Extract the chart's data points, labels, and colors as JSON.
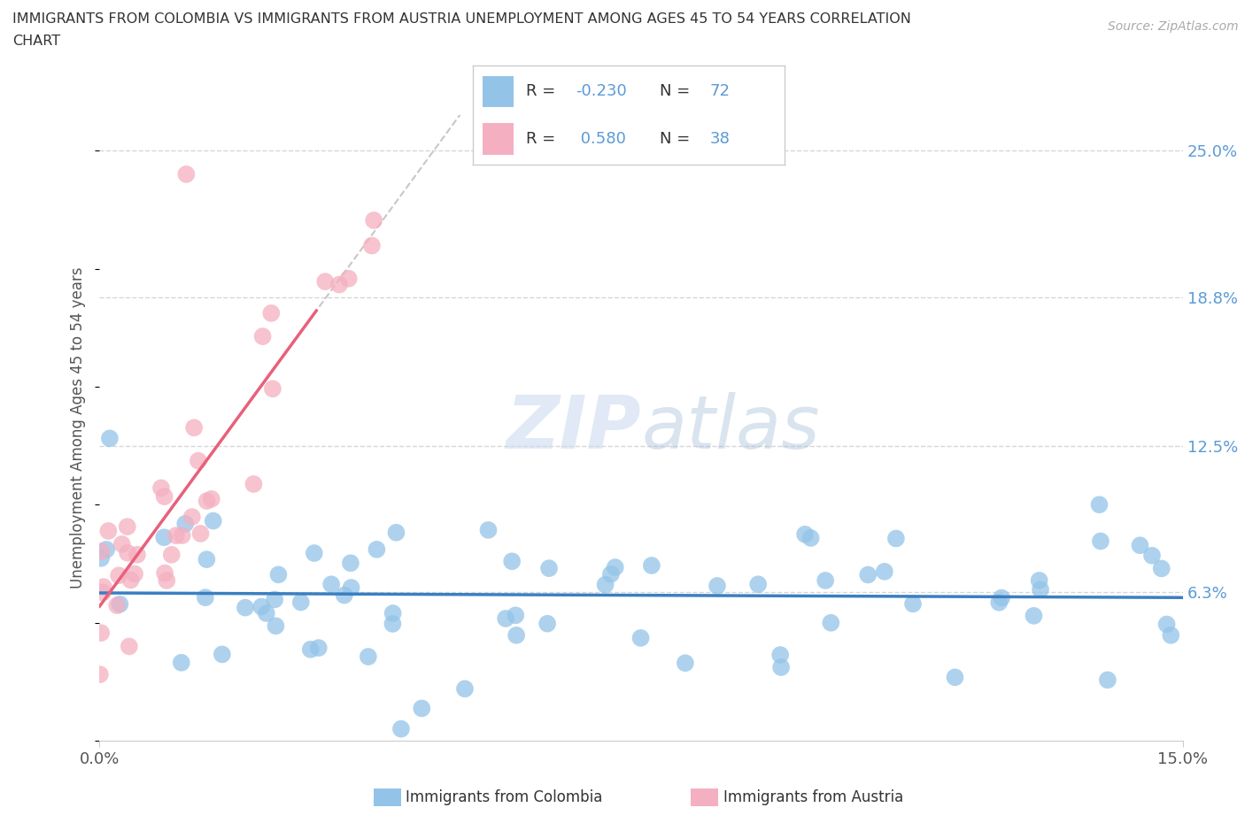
{
  "title_line1": "IMMIGRANTS FROM COLOMBIA VS IMMIGRANTS FROM AUSTRIA UNEMPLOYMENT AMONG AGES 45 TO 54 YEARS CORRELATION",
  "title_line2": "CHART",
  "source": "Source: ZipAtlas.com",
  "ylabel": "Unemployment Among Ages 45 to 54 years",
  "xlim": [
    0.0,
    0.15
  ],
  "ylim": [
    0.0,
    0.265
  ],
  "colombia_R": -0.23,
  "colombia_N": 72,
  "austria_R": 0.58,
  "austria_N": 38,
  "colombia_color": "#93c4e8",
  "austria_color": "#f4afc0",
  "colombia_line_color": "#3a7fc1",
  "austria_line_color": "#e8607a",
  "legend_label_colombia": "Immigrants from Colombia",
  "legend_label_austria": "Immigrants from Austria",
  "watermark_zip": "ZIP",
  "watermark_atlas": "atlas",
  "background_color": "#ffffff",
  "grid_color": "#cccccc",
  "ytick_positions": [
    0.063,
    0.125,
    0.188,
    0.25
  ],
  "ytick_labels": [
    "6.3%",
    "12.5%",
    "18.8%",
    "25.0%"
  ],
  "xtick_positions": [
    0.0,
    0.15
  ],
  "xtick_labels": [
    "0.0%",
    "15.0%"
  ]
}
